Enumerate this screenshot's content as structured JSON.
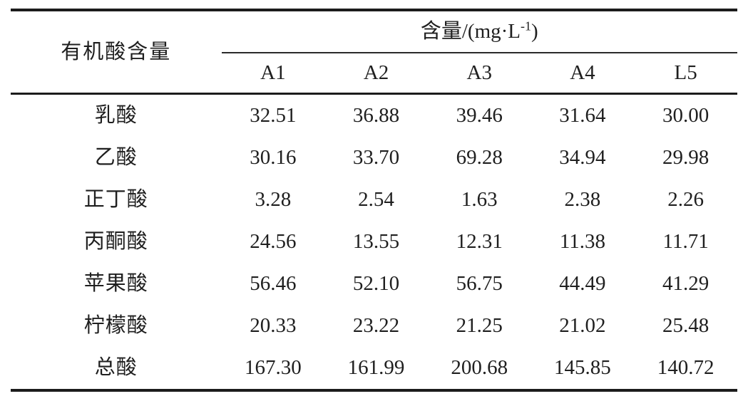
{
  "table": {
    "stub_header": "有机酸含量",
    "spanner": {
      "prefix": "含量/(mg·L",
      "superscript": "-1",
      "suffix": ")"
    },
    "columns": [
      "A1",
      "A2",
      "A3",
      "A4",
      "L5"
    ],
    "rows": [
      {
        "label": "乳酸",
        "values": [
          "32.51",
          "36.88",
          "39.46",
          "31.64",
          "30.00"
        ]
      },
      {
        "label": "乙酸",
        "values": [
          "30.16",
          "33.70",
          "69.28",
          "34.94",
          "29.98"
        ]
      },
      {
        "label": "正丁酸",
        "values": [
          "3.28",
          "2.54",
          "1.63",
          "2.38",
          "2.26"
        ]
      },
      {
        "label": "丙酮酸",
        "values": [
          "24.56",
          "13.55",
          "12.31",
          "11.38",
          "11.71"
        ]
      },
      {
        "label": "苹果酸",
        "values": [
          "56.46",
          "52.10",
          "56.75",
          "44.49",
          "41.29"
        ]
      },
      {
        "label": "柠檬酸",
        "values": [
          "20.33",
          "23.22",
          "21.25",
          "21.02",
          "25.48"
        ]
      },
      {
        "label": "总酸",
        "values": [
          "167.30",
          "161.99",
          "200.68",
          "145.85",
          "140.72"
        ]
      }
    ]
  },
  "chart_data": {
    "type": "table",
    "title": "含量/(mg·L-1)",
    "stub_label": "有机酸含量",
    "categories": [
      "A1",
      "A2",
      "A3",
      "A4",
      "L5"
    ],
    "series": [
      {
        "name": "乳酸",
        "values": [
          32.51,
          36.88,
          39.46,
          31.64,
          30.0
        ]
      },
      {
        "name": "乙酸",
        "values": [
          30.16,
          33.7,
          69.28,
          34.94,
          29.98
        ]
      },
      {
        "name": "正丁酸",
        "values": [
          3.28,
          2.54,
          1.63,
          2.38,
          2.26
        ]
      },
      {
        "name": "丙酮酸",
        "values": [
          24.56,
          13.55,
          12.31,
          11.38,
          11.71
        ]
      },
      {
        "name": "苹果酸",
        "values": [
          56.46,
          52.1,
          56.75,
          44.49,
          41.29
        ]
      },
      {
        "name": "柠檬酸",
        "values": [
          20.33,
          23.22,
          21.25,
          21.02,
          25.48
        ]
      },
      {
        "name": "总酸",
        "values": [
          167.3,
          161.99,
          200.68,
          145.85,
          140.72
        ]
      }
    ]
  }
}
